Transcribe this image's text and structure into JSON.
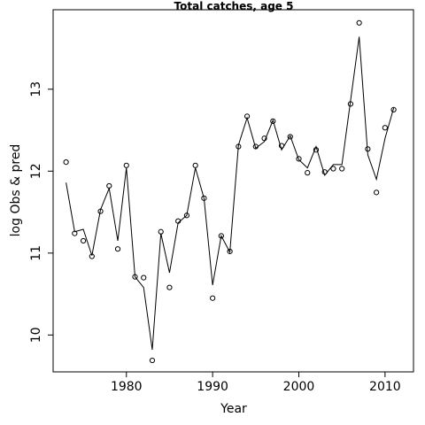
{
  "chart_data": {
    "type": "line",
    "title": "Total catches, age 5",
    "xlabel": "Year",
    "ylabel": "log Obs & pred",
    "xlim": [
      1971.5,
      2013.3
    ],
    "ylim": [
      9.55,
      13.97
    ],
    "x_ticks": [
      1980,
      1990,
      2000,
      2010
    ],
    "y_ticks": [
      10,
      11,
      12,
      13
    ],
    "grid": false,
    "legend": "none",
    "x": [
      1973,
      1974,
      1975,
      1976,
      1977,
      1978,
      1979,
      1980,
      1981,
      1982,
      1983,
      1984,
      1985,
      1986,
      1987,
      1988,
      1989,
      1990,
      1991,
      1992,
      1993,
      1994,
      1995,
      1996,
      1997,
      1998,
      1999,
      2000,
      2001,
      2002,
      2003,
      2004,
      2005,
      2006,
      2007,
      2008,
      2009,
      2010,
      2011
    ],
    "series": [
      {
        "role": "observed",
        "marker": "circle",
        "values": [
          12.11,
          11.24,
          11.15,
          10.96,
          11.51,
          11.82,
          11.05,
          12.07,
          10.71,
          10.7,
          9.69,
          11.26,
          10.58,
          11.39,
          11.46,
          12.07,
          11.67,
          10.45,
          11.21,
          11.02,
          12.3,
          12.67,
          12.3,
          12.4,
          12.61,
          12.31,
          12.42,
          12.15,
          11.98,
          12.26,
          11.99,
          12.03,
          12.03,
          12.82,
          13.81,
          12.27,
          11.74,
          12.53,
          12.75
        ]
      },
      {
        "role": "predicted",
        "marker": "line",
        "values": [
          11.86,
          11.26,
          11.29,
          10.97,
          11.53,
          11.79,
          11.15,
          12.04,
          10.71,
          10.58,
          9.82,
          11.24,
          10.76,
          11.37,
          11.46,
          12.04,
          11.67,
          10.61,
          11.21,
          11.01,
          12.32,
          12.65,
          12.28,
          12.36,
          12.62,
          12.26,
          12.43,
          12.14,
          12.04,
          12.3,
          11.95,
          12.08,
          12.08,
          12.86,
          13.64,
          12.2,
          11.9,
          12.4,
          12.77
        ]
      }
    ]
  }
}
